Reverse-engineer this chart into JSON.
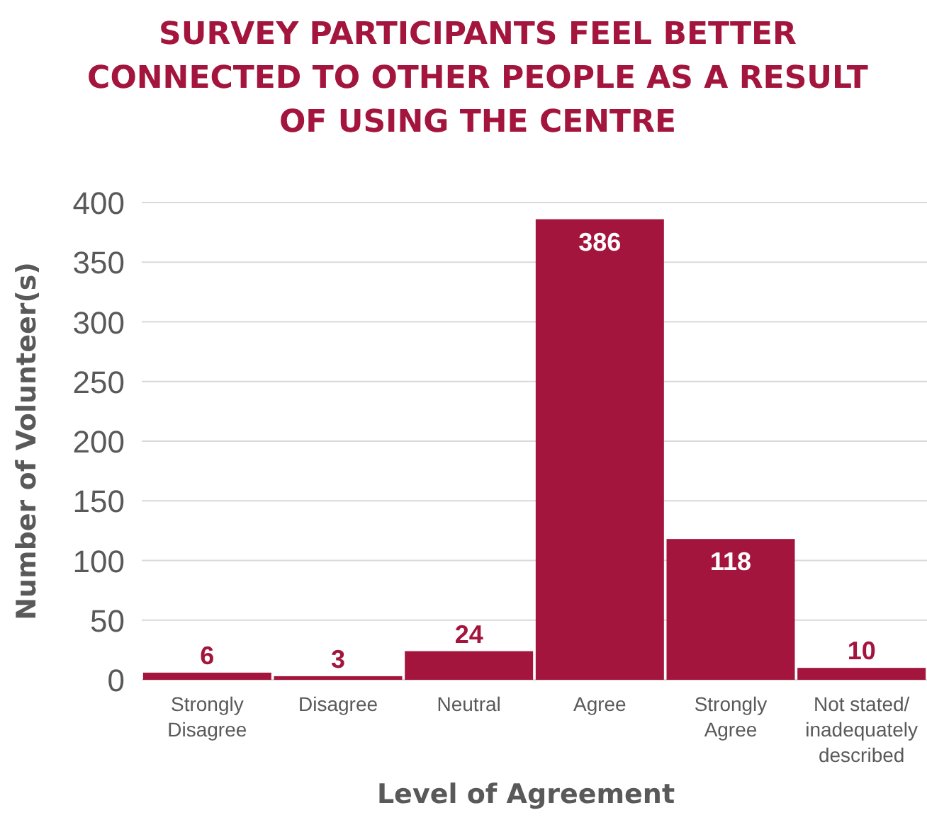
{
  "chart_data": {
    "type": "bar",
    "title": "SURVEY PARTICIPANTS FEEL BETTER CONNECTED TO OTHER PEOPLE AS A RESULT OF USING THE CENTRE",
    "xlabel": "Level of Agreement",
    "ylabel": "Number of Volunteer(s)",
    "categories": [
      "Strongly Disagree",
      "Disagree",
      "Neutral",
      "Agree",
      "Strongly Agree",
      "Not stated/ inadequately described"
    ],
    "values": [
      6,
      3,
      24,
      386,
      118,
      10
    ],
    "color": "#a3153d",
    "ylim": [
      0,
      400
    ],
    "yticks": [
      0,
      50,
      100,
      150,
      200,
      250,
      300,
      350,
      400
    ],
    "grid": "y",
    "data_labels": true
  }
}
